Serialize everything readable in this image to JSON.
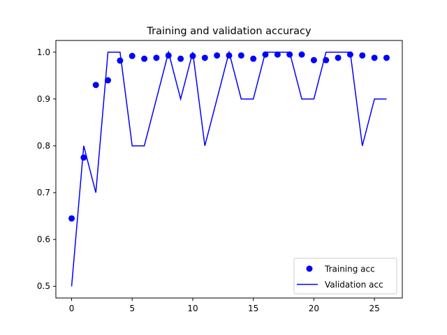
{
  "chart_data": {
    "type": "line",
    "title": "Training and validation accuracy",
    "xlabel": "",
    "ylabel": "",
    "xlim": [
      -1.3,
      27.3
    ],
    "ylim": [
      0.475,
      1.025
    ],
    "x_ticks": [
      0,
      5,
      10,
      15,
      20,
      25
    ],
    "x_tick_labels": [
      "0",
      "5",
      "10",
      "15",
      "20",
      "25"
    ],
    "y_ticks": [
      0.5,
      0.6,
      0.7,
      0.8,
      0.9,
      1.0
    ],
    "y_tick_labels": [
      "0.5",
      "0.6",
      "0.7",
      "0.8",
      "0.9",
      "1.0"
    ],
    "grid": false,
    "legend_position": "lower-right",
    "x": [
      0,
      1,
      2,
      3,
      4,
      5,
      6,
      7,
      8,
      9,
      10,
      11,
      12,
      13,
      14,
      15,
      16,
      17,
      18,
      19,
      20,
      21,
      22,
      23,
      24,
      25,
      26
    ],
    "series": [
      {
        "name": "Training acc",
        "style": "markers",
        "color": "#0000ff",
        "values": [
          0.645,
          0.775,
          0.93,
          0.94,
          0.982,
          0.992,
          0.986,
          0.988,
          0.993,
          0.986,
          0.992,
          0.988,
          0.993,
          0.993,
          0.993,
          0.986,
          0.995,
          0.995,
          0.995,
          0.995,
          0.983,
          0.983,
          0.988,
          0.995,
          0.993,
          0.988,
          0.988
        ]
      },
      {
        "name": "Validation acc",
        "style": "line",
        "color": "#0000ff",
        "values": [
          0.5,
          0.8,
          0.7,
          1.0,
          1.0,
          0.8,
          0.8,
          0.9,
          1.0,
          0.9,
          1.0,
          0.8,
          0.9,
          1.0,
          0.9,
          0.9,
          1.0,
          1.0,
          1.0,
          0.9,
          0.9,
          1.0,
          1.0,
          1.0,
          0.8,
          0.9,
          0.9
        ]
      }
    ]
  }
}
